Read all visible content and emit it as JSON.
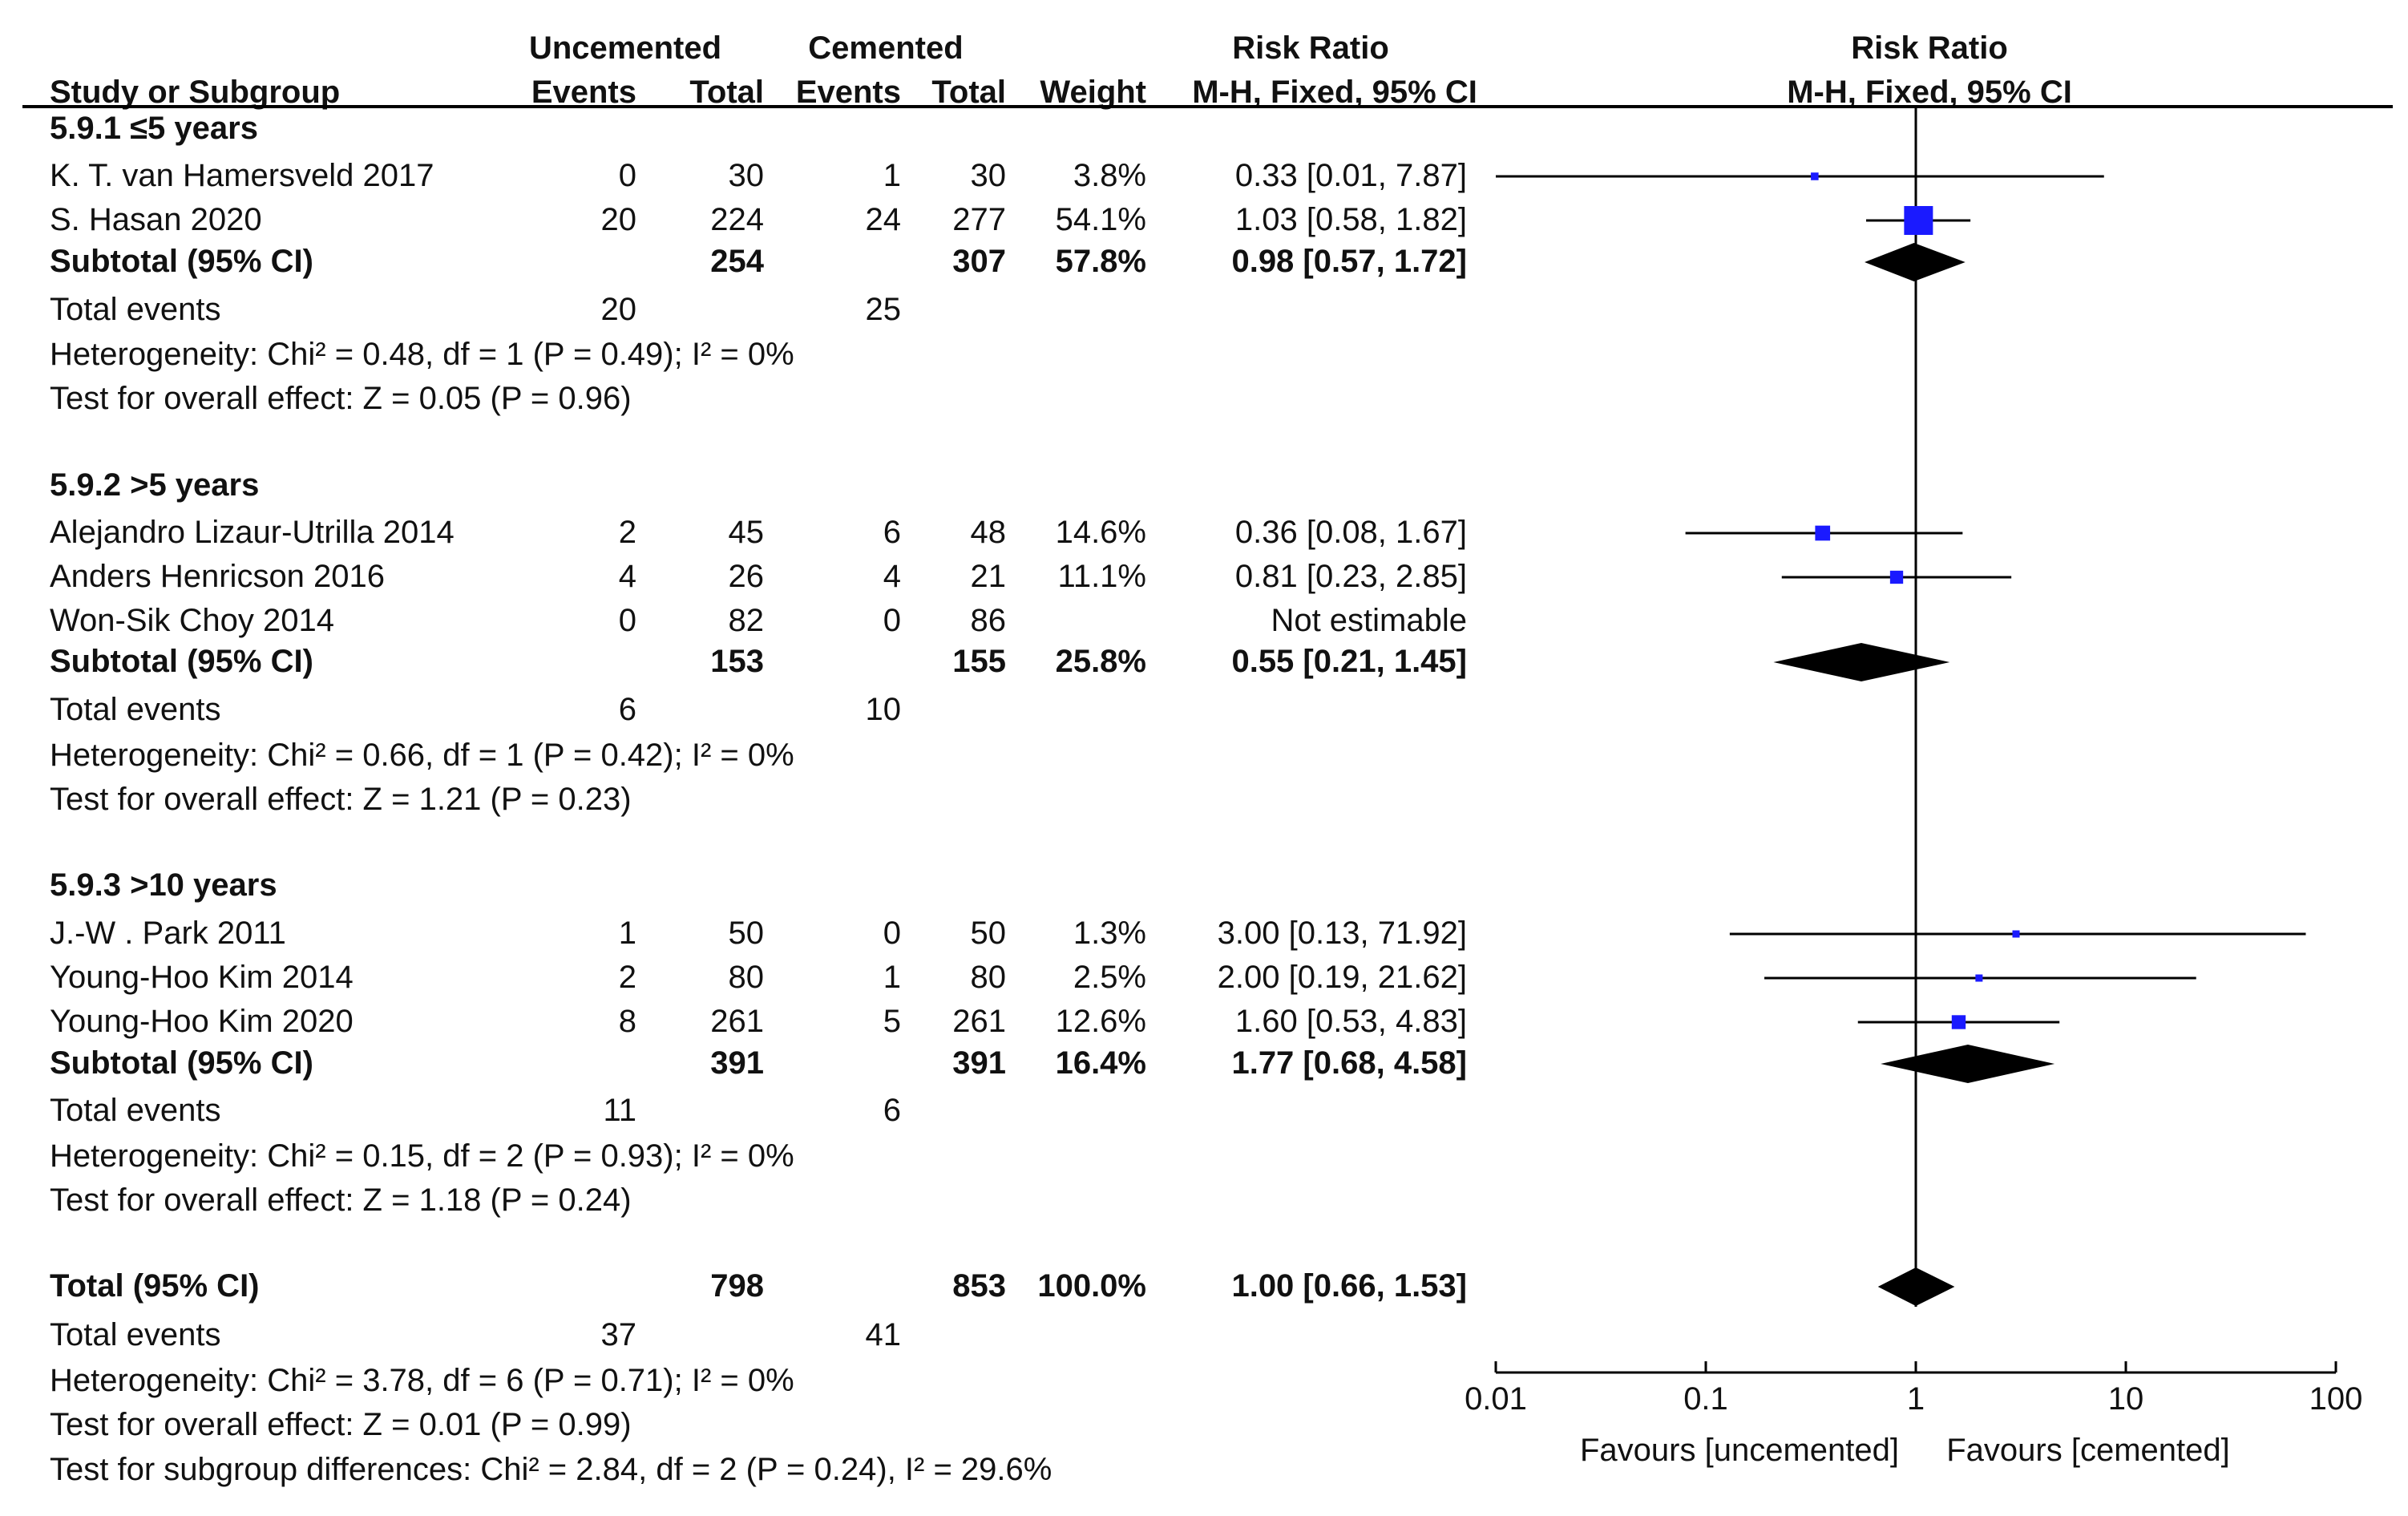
{
  "header": {
    "group1": "Uncemented",
    "group2": "Cemented",
    "rr_col_top": "Risk Ratio",
    "rr_col_bottom": "M-H, Fixed, 95% CI",
    "plot_top": "Risk Ratio",
    "plot_bottom": "M-H, Fixed, 95% CI",
    "study_col": "Study or Subgroup",
    "events1": "Events",
    "total1": "Total",
    "events2": "Events",
    "total2": "Total",
    "weight": "Weight"
  },
  "subgroups": [
    {
      "title": "5.9.1 ≤5 years",
      "studies": [
        {
          "name": "K. T. van Hamersveld 2017",
          "e1": "0",
          "t1": "30",
          "e2": "1",
          "t2": "30",
          "weight": "3.8%",
          "ci": "0.33 [0.01, 7.87]"
        },
        {
          "name": "S. Hasan 2020",
          "e1": "20",
          "t1": "224",
          "e2": "24",
          "t2": "277",
          "weight": "54.1%",
          "ci": "1.03 [0.58, 1.82]"
        }
      ],
      "subtotal": {
        "label": "Subtotal (95% CI)",
        "t1": "254",
        "t2": "307",
        "weight": "57.8%",
        "ci": "0.98 [0.57, 1.72]"
      },
      "total_events": {
        "label": "Total events",
        "e1": "20",
        "e2": "25"
      },
      "heterogeneity": "Heterogeneity: Chi² = 0.48, df = 1 (P = 0.49); I² = 0%",
      "overall": "Test for overall effect: Z = 0.05 (P = 0.96)"
    },
    {
      "title": "5.9.2 >5 years",
      "studies": [
        {
          "name": "Alejandro Lizaur-Utrilla 2014",
          "e1": "2",
          "t1": "45",
          "e2": "6",
          "t2": "48",
          "weight": "14.6%",
          "ci": "0.36 [0.08, 1.67]"
        },
        {
          "name": "Anders Henricson 2016",
          "e1": "4",
          "t1": "26",
          "e2": "4",
          "t2": "21",
          "weight": "11.1%",
          "ci": "0.81 [0.23, 2.85]"
        },
        {
          "name": "Won-Sik Choy 2014",
          "e1": "0",
          "t1": "82",
          "e2": "0",
          "t2": "86",
          "weight": "",
          "ci": "Not estimable"
        }
      ],
      "subtotal": {
        "label": "Subtotal (95% CI)",
        "t1": "153",
        "t2": "155",
        "weight": "25.8%",
        "ci": "0.55 [0.21, 1.45]"
      },
      "total_events": {
        "label": "Total events",
        "e1": "6",
        "e2": "10"
      },
      "heterogeneity": "Heterogeneity: Chi² = 0.66, df = 1 (P = 0.42); I² = 0%",
      "overall": "Test for overall effect: Z = 1.21 (P = 0.23)"
    },
    {
      "title": "5.9.3 >10 years",
      "studies": [
        {
          "name": "J.-W . Park 2011",
          "e1": "1",
          "t1": "50",
          "e2": "0",
          "t2": "50",
          "weight": "1.3%",
          "ci": "3.00 [0.13, 71.92]"
        },
        {
          "name": "Young-Hoo Kim 2014",
          "e1": "2",
          "t1": "80",
          "e2": "1",
          "t2": "80",
          "weight": "2.5%",
          "ci": "2.00 [0.19, 21.62]"
        },
        {
          "name": "Young-Hoo Kim 2020",
          "e1": "8",
          "t1": "261",
          "e2": "5",
          "t2": "261",
          "weight": "12.6%",
          "ci": "1.60 [0.53, 4.83]"
        }
      ],
      "subtotal": {
        "label": "Subtotal (95% CI)",
        "t1": "391",
        "t2": "391",
        "weight": "16.4%",
        "ci": "1.77 [0.68, 4.58]"
      },
      "total_events": {
        "label": "Total events",
        "e1": "11",
        "e2": "6"
      },
      "heterogeneity": "Heterogeneity: Chi² = 0.15, df = 2 (P = 0.93); I² = 0%",
      "overall": "Test for overall effect: Z = 1.18 (P = 0.24)"
    }
  ],
  "total": {
    "label": "Total (95% CI)",
    "t1": "798",
    "t2": "853",
    "weight": "100.0%",
    "ci": "1.00 [0.66, 1.53]",
    "events_label": "Total events",
    "e1": "37",
    "e2": "41",
    "heterogeneity": "Heterogeneity: Chi² = 3.78, df = 6 (P = 0.71); I² = 0%",
    "overall": "Test for overall effect: Z = 0.01 (P = 0.99)",
    "subgroup_diff": "Test for subgroup differences: Chi² = 2.84, df = 2 (P = 0.24), I² = 29.6%"
  },
  "axis": {
    "ticks": [
      "0.01",
      "0.1",
      "1",
      "10",
      "100"
    ],
    "favours_left": "Favours [uncemented]",
    "favours_right": "Favours [cemented]"
  },
  "colors": {
    "marker": "#1a1aff",
    "diamond": "#000000",
    "line": "#000000"
  },
  "chart_data": {
    "type": "forest",
    "title": "Risk Ratio M-H, Fixed, 95% CI",
    "xscale": "log",
    "xlim": [
      0.01,
      100
    ],
    "null_value": 1,
    "studies": [
      {
        "name": "K. T. van Hamersveld 2017",
        "rr": 0.33,
        "lo": 0.01,
        "hi": 7.87,
        "weight": 3.8
      },
      {
        "name": "S. Hasan 2020",
        "rr": 1.03,
        "lo": 0.58,
        "hi": 1.82,
        "weight": 54.1
      },
      {
        "name": "Alejandro Lizaur-Utrilla 2014",
        "rr": 0.36,
        "lo": 0.08,
        "hi": 1.67,
        "weight": 14.6
      },
      {
        "name": "Anders Henricson 2016",
        "rr": 0.81,
        "lo": 0.23,
        "hi": 2.85,
        "weight": 11.1
      },
      {
        "name": "J.-W . Park 2011",
        "rr": 3.0,
        "lo": 0.13,
        "hi": 71.92,
        "weight": 1.3
      },
      {
        "name": "Young-Hoo Kim 2014",
        "rr": 2.0,
        "lo": 0.19,
        "hi": 21.62,
        "weight": 2.5
      },
      {
        "name": "Young-Hoo Kim 2020",
        "rr": 1.6,
        "lo": 0.53,
        "hi": 4.83,
        "weight": 12.6
      }
    ],
    "pooled": [
      {
        "name": "Subtotal 5.9.1",
        "rr": 0.98,
        "lo": 0.57,
        "hi": 1.72
      },
      {
        "name": "Subtotal 5.9.2",
        "rr": 0.55,
        "lo": 0.21,
        "hi": 1.45
      },
      {
        "name": "Subtotal 5.9.3",
        "rr": 1.77,
        "lo": 0.68,
        "hi": 4.58
      },
      {
        "name": "Total",
        "rr": 1.0,
        "lo": 0.66,
        "hi": 1.53
      }
    ]
  }
}
